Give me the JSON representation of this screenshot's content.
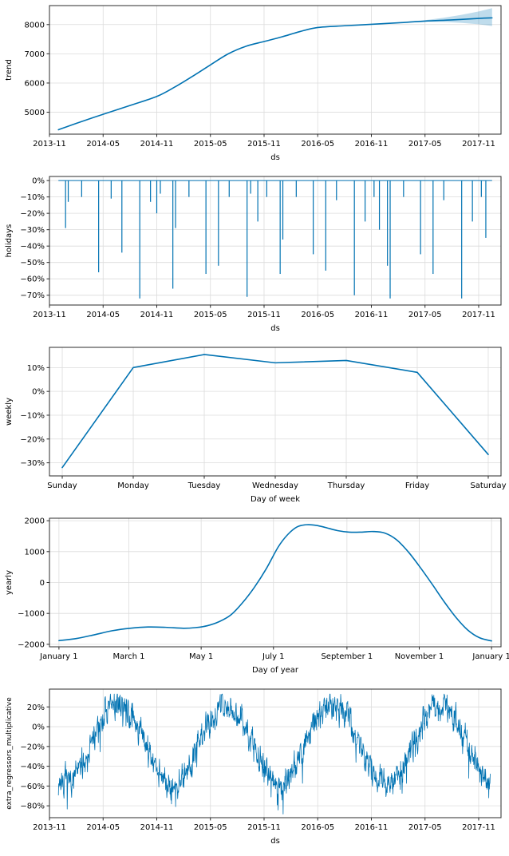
{
  "figure": {
    "kind": "prophet-forecast-components",
    "background": "#ffffff"
  },
  "colors": {
    "line": "#0072B2",
    "band": "rgba(0,114,178,0.25)",
    "grid": "#dcdcdc",
    "spine": "#2b2b2b",
    "text": "#000000",
    "plot_bg": "#ffffff"
  },
  "chart_data": [
    {
      "type": "line",
      "name": "trend",
      "ylabel": "trend",
      "xlabel": "ds",
      "smooth": true,
      "xlim": [
        0,
        50.5
      ],
      "ylim": [
        4250,
        8650
      ],
      "xticks": [
        {
          "v": 0,
          "label": "2013-11"
        },
        {
          "v": 6,
          "label": "2014-05"
        },
        {
          "v": 12,
          "label": "2014-11"
        },
        {
          "v": 18,
          "label": "2015-05"
        },
        {
          "v": 24,
          "label": "2015-11"
        },
        {
          "v": 30,
          "label": "2016-05"
        },
        {
          "v": 36,
          "label": "2016-11"
        },
        {
          "v": 42,
          "label": "2017-05"
        },
        {
          "v": 48,
          "label": "2017-11"
        }
      ],
      "yticks": [
        {
          "v": 5000,
          "label": "5000"
        },
        {
          "v": 6000,
          "label": "6000"
        },
        {
          "v": 7000,
          "label": "7000"
        },
        {
          "v": 8000,
          "label": "8000"
        }
      ],
      "x": [
        1,
        3,
        6,
        9,
        12,
        14,
        16,
        18,
        20,
        22,
        24,
        26,
        28,
        30,
        33,
        36,
        39,
        42,
        45,
        48,
        49.5
      ],
      "y": [
        4400,
        4620,
        4930,
        5230,
        5540,
        5860,
        6230,
        6620,
        7000,
        7260,
        7420,
        7580,
        7760,
        7900,
        7960,
        8010,
        8060,
        8120,
        8160,
        8210,
        8230
      ],
      "band": {
        "x": [
          40,
          42,
          44,
          46,
          48,
          49.5
        ],
        "lower": [
          8090,
          8100,
          8090,
          8060,
          8010,
          7950
        ],
        "upper": [
          8100,
          8150,
          8230,
          8330,
          8450,
          8560
        ]
      }
    },
    {
      "type": "spikes",
      "name": "holidays",
      "ylabel": "holidays",
      "xlabel": "ds",
      "xlim": [
        0,
        50.5
      ],
      "ylim": [
        -76,
        2.5
      ],
      "baseline": {
        "x0": 1.0,
        "x1": 49.5,
        "y": 0
      },
      "xticks": [
        {
          "v": 0,
          "label": "2013-11"
        },
        {
          "v": 6,
          "label": "2014-05"
        },
        {
          "v": 12,
          "label": "2014-11"
        },
        {
          "v": 18,
          "label": "2015-05"
        },
        {
          "v": 24,
          "label": "2015-11"
        },
        {
          "v": 30,
          "label": "2016-05"
        },
        {
          "v": 36,
          "label": "2016-11"
        },
        {
          "v": 42,
          "label": "2017-05"
        },
        {
          "v": 48,
          "label": "2017-11"
        }
      ],
      "yticks": [
        {
          "v": 0,
          "label": "0%"
        },
        {
          "v": -10,
          "label": "−10%"
        },
        {
          "v": -20,
          "label": "−20%"
        },
        {
          "v": -30,
          "label": "−30%"
        },
        {
          "v": -40,
          "label": "−40%"
        },
        {
          "v": -50,
          "label": "−50%"
        },
        {
          "v": -60,
          "label": "−60%"
        },
        {
          "v": -70,
          "label": "−70%"
        }
      ],
      "spikes": [
        [
          1.8,
          -29
        ],
        [
          2.1,
          -13
        ],
        [
          3.6,
          -10
        ],
        [
          5.5,
          -56
        ],
        [
          6.9,
          -11
        ],
        [
          8.1,
          -44
        ],
        [
          10.1,
          -72
        ],
        [
          11.3,
          -13
        ],
        [
          12.0,
          -20
        ],
        [
          12.4,
          -8
        ],
        [
          13.8,
          -66
        ],
        [
          14.1,
          -29
        ],
        [
          15.6,
          -10
        ],
        [
          17.5,
          -57
        ],
        [
          18.9,
          -52
        ],
        [
          20.1,
          -10
        ],
        [
          22.1,
          -71
        ],
        [
          22.5,
          -8
        ],
        [
          23.3,
          -25
        ],
        [
          24.3,
          -10
        ],
        [
          25.8,
          -57
        ],
        [
          26.1,
          -36
        ],
        [
          27.6,
          -10
        ],
        [
          29.5,
          -45
        ],
        [
          30.9,
          -55
        ],
        [
          32.1,
          -12
        ],
        [
          34.1,
          -70
        ],
        [
          35.3,
          -25
        ],
        [
          36.3,
          -10
        ],
        [
          36.9,
          -30
        ],
        [
          37.8,
          -52
        ],
        [
          38.1,
          -72
        ],
        [
          39.6,
          -10
        ],
        [
          41.5,
          -45
        ],
        [
          42.9,
          -57
        ],
        [
          44.1,
          -12
        ],
        [
          46.1,
          -72
        ],
        [
          47.3,
          -25
        ],
        [
          48.3,
          -10
        ],
        [
          48.8,
          -35
        ]
      ]
    },
    {
      "type": "line",
      "name": "weekly",
      "ylabel": "weekly",
      "xlabel": "Day of week",
      "smooth": false,
      "xlim": [
        -0.18,
        6.18
      ],
      "ylim": [
        -35.5,
        18.5
      ],
      "categories": [
        "Sunday",
        "Monday",
        "Tuesday",
        "Wednesday",
        "Thursday",
        "Friday",
        "Saturday"
      ],
      "values": [
        -32,
        10,
        15.5,
        12,
        13,
        8,
        -26.5
      ],
      "yticks": [
        {
          "v": 10,
          "label": "10%"
        },
        {
          "v": 0,
          "label": "0%"
        },
        {
          "v": -10,
          "label": "−10%"
        },
        {
          "v": -20,
          "label": "−20%"
        },
        {
          "v": -30,
          "label": "−30%"
        }
      ]
    },
    {
      "type": "line",
      "name": "yearly",
      "ylabel": "yearly",
      "xlabel": "Day of year",
      "smooth": true,
      "xlim": [
        -8,
        373
      ],
      "ylim": [
        -2080,
        2080
      ],
      "xticks": [
        {
          "v": 0,
          "label": "January 1"
        },
        {
          "v": 59,
          "label": "March 1"
        },
        {
          "v": 120,
          "label": "May 1"
        },
        {
          "v": 181,
          "label": "July 1"
        },
        {
          "v": 243,
          "label": "September 1"
        },
        {
          "v": 304,
          "label": "November 1"
        },
        {
          "v": 365,
          "label": "January 1"
        }
      ],
      "yticks": [
        {
          "v": 2000,
          "label": "2000"
        },
        {
          "v": 1000,
          "label": "1000"
        },
        {
          "v": 0,
          "label": "0"
        },
        {
          "v": -1000,
          "label": "−1000"
        },
        {
          "v": -2000,
          "label": "−2000"
        }
      ],
      "x": [
        0,
        15,
        30,
        45,
        60,
        75,
        90,
        105,
        115,
        125,
        135,
        145,
        155,
        165,
        175,
        185,
        193,
        201,
        209,
        217,
        225,
        235,
        245,
        255,
        265,
        275,
        285,
        295,
        305,
        315,
        325,
        335,
        345,
        355,
        365
      ],
      "y": [
        -1880,
        -1810,
        -1690,
        -1560,
        -1480,
        -1440,
        -1450,
        -1480,
        -1460,
        -1400,
        -1270,
        -1050,
        -650,
        -150,
        450,
        1150,
        1550,
        1800,
        1870,
        1850,
        1780,
        1680,
        1630,
        1630,
        1650,
        1600,
        1380,
        980,
        480,
        -60,
        -620,
        -1130,
        -1540,
        -1790,
        -1890
      ]
    },
    {
      "type": "noisy",
      "name": "extra_regressors_multiplicative",
      "ylabel": "extra_regressors_multiplicative",
      "xlabel": "ds",
      "xlim": [
        0,
        50.5
      ],
      "ylim": [
        -92,
        38
      ],
      "xticks": [
        {
          "v": 0,
          "label": "2013-11"
        },
        {
          "v": 6,
          "label": "2014-05"
        },
        {
          "v": 12,
          "label": "2014-11"
        },
        {
          "v": 18,
          "label": "2015-05"
        },
        {
          "v": 24,
          "label": "2015-11"
        },
        {
          "v": 30,
          "label": "2016-05"
        },
        {
          "v": 36,
          "label": "2016-11"
        },
        {
          "v": 42,
          "label": "2017-05"
        },
        {
          "v": 48,
          "label": "2017-11"
        }
      ],
      "yticks": [
        {
          "v": 20,
          "label": "20%"
        },
        {
          "v": 0,
          "label": "0%"
        },
        {
          "v": -20,
          "label": "−20%"
        },
        {
          "v": -40,
          "label": "−40%"
        },
        {
          "v": -60,
          "label": "−60%"
        },
        {
          "v": -80,
          "label": "−80%"
        }
      ],
      "gen": {
        "start_month": 1.0,
        "end_month": 49.3,
        "step_days": 1,
        "seed": 7,
        "seasonal_mean": -17,
        "seasonal_amp": 40,
        "phase_peak_month": 7.7,
        "noise": 16,
        "ar": 0.45,
        "spike_prob": 0.05,
        "spike_extra": 20,
        "clamp": [
          -90,
          33
        ]
      }
    }
  ]
}
